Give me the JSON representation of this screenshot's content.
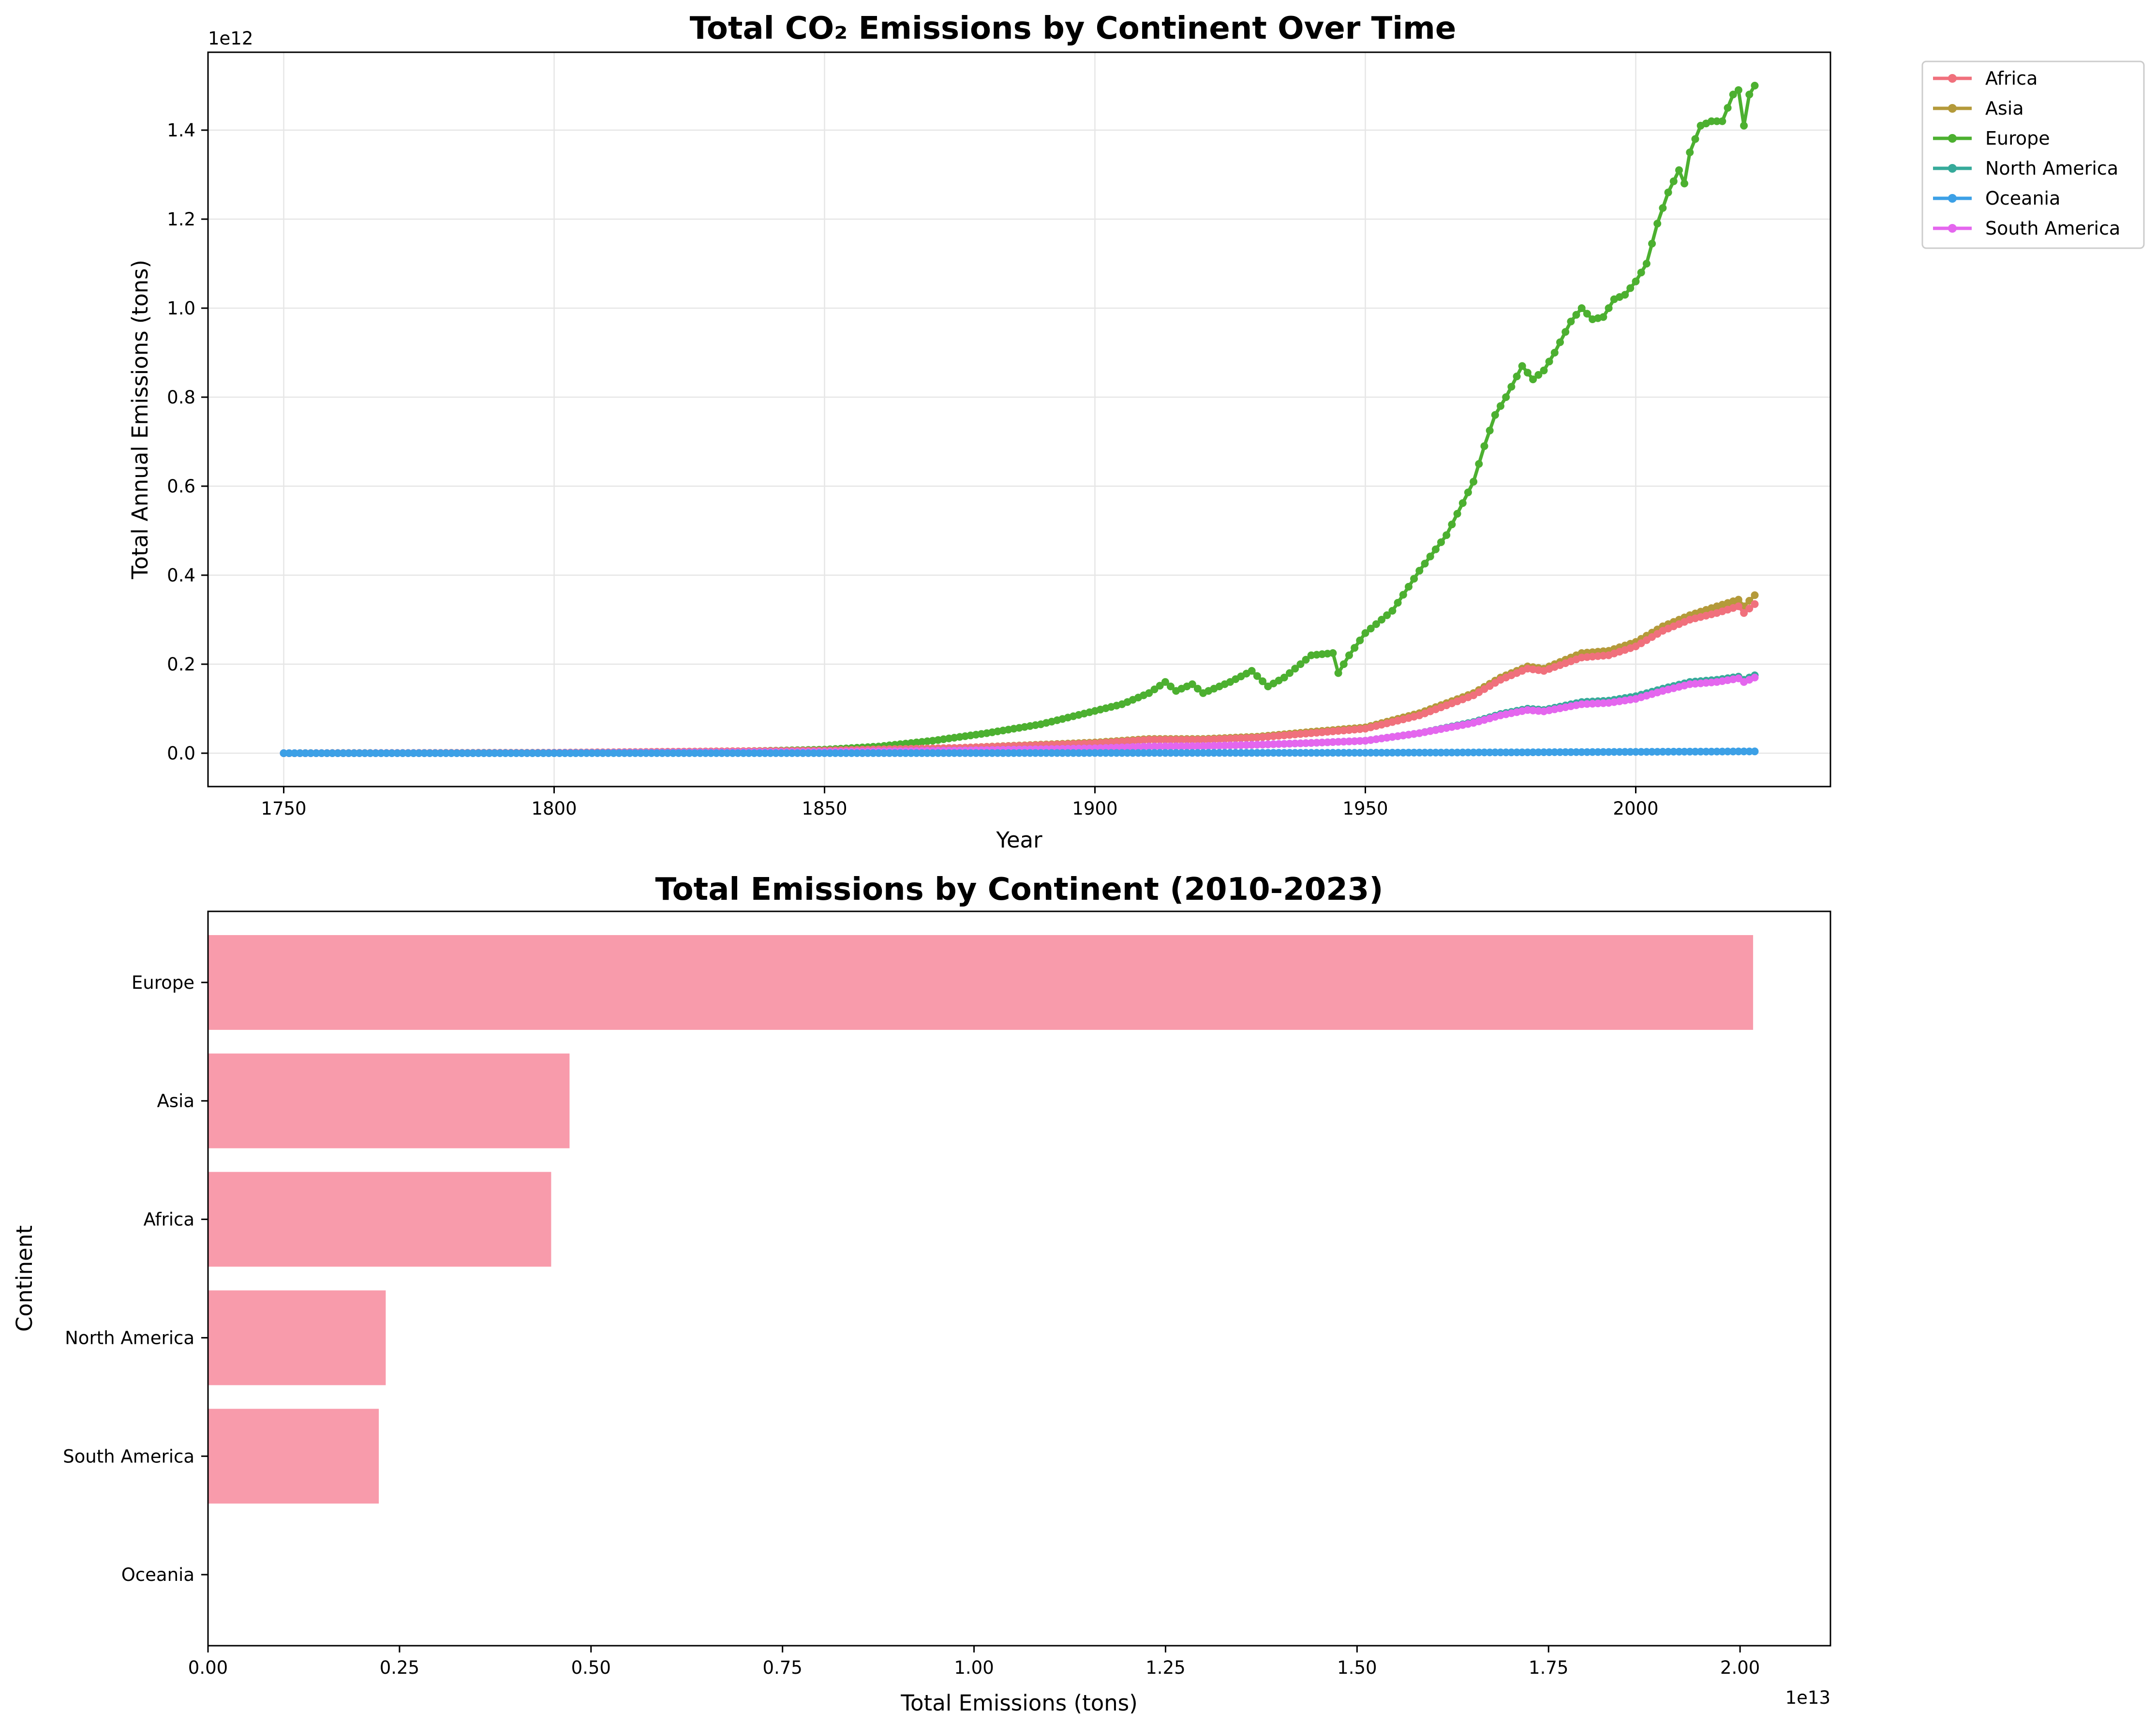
{
  "colors": {
    "Africa": "#f0707c",
    "Asia": "#b49a3a",
    "Europe": "#4cb030",
    "North America": "#36aa9a",
    "Oceania": "#3ca0e6",
    "South America": "#e466ee",
    "bar": "#f89bab",
    "grid": "#e6e6e6"
  },
  "chart_data": [
    {
      "type": "line",
      "title": "Total CO₂ Emissions by Continent Over Time",
      "xlabel": "Year",
      "ylabel": "Total Annual Emissions (tons)",
      "y_offset_label": "1e12",
      "x_ticks": [
        1750,
        1800,
        1850,
        1900,
        1950,
        2000
      ],
      "x_tick_labels": [
        "1750",
        "1800",
        "1850",
        "1900",
        "1950",
        "2000"
      ],
      "y_ticks": [
        0.0,
        0.2,
        0.4,
        0.6,
        0.8,
        1.0,
        1.2,
        1.4
      ],
      "y_tick_labels": [
        "0.0",
        "0.2",
        "0.4",
        "0.6",
        "0.8",
        "1.0",
        "1.2",
        "1.4"
      ],
      "xlim": [
        1736,
        2036
      ],
      "ylim": [
        -0.075,
        1.575
      ],
      "y_unit": "1e12 tons",
      "grid": true,
      "legend": "outside-top-right",
      "legend_entries": [
        "Africa",
        "Asia",
        "Europe",
        "North America",
        "Oceania",
        "South America"
      ],
      "x_range": [
        1750,
        2022
      ],
      "series": [
        {
          "name": "Africa",
          "points": [
            [
              1750,
              0
            ],
            [
              1800,
              0.001
            ],
            [
              1850,
              0.006
            ],
            [
              1875,
              0.012
            ],
            [
              1900,
              0.022
            ],
            [
              1910,
              0.03
            ],
            [
              1920,
              0.03
            ],
            [
              1930,
              0.035
            ],
            [
              1940,
              0.045
            ],
            [
              1950,
              0.055
            ],
            [
              1960,
              0.085
            ],
            [
              1970,
              0.13
            ],
            [
              1975,
              0.165
            ],
            [
              1980,
              0.19
            ],
            [
              1983,
              0.185
            ],
            [
              1990,
              0.215
            ],
            [
              1995,
              0.22
            ],
            [
              2000,
              0.24
            ],
            [
              2005,
              0.275
            ],
            [
              2010,
              0.3
            ],
            [
              2015,
              0.315
            ],
            [
              2019,
              0.33
            ],
            [
              2020,
              0.315
            ],
            [
              2022,
              0.335
            ]
          ]
        },
        {
          "name": "Asia",
          "points": [
            [
              1750,
              0
            ],
            [
              1800,
              0.001
            ],
            [
              1850,
              0.006
            ],
            [
              1875,
              0.012
            ],
            [
              1900,
              0.024
            ],
            [
              1910,
              0.032
            ],
            [
              1920,
              0.032
            ],
            [
              1930,
              0.037
            ],
            [
              1940,
              0.048
            ],
            [
              1950,
              0.058
            ],
            [
              1960,
              0.09
            ],
            [
              1970,
              0.135
            ],
            [
              1975,
              0.17
            ],
            [
              1980,
              0.195
            ],
            [
              1983,
              0.19
            ],
            [
              1990,
              0.225
            ],
            [
              1995,
              0.23
            ],
            [
              2000,
              0.25
            ],
            [
              2005,
              0.285
            ],
            [
              2010,
              0.31
            ],
            [
              2015,
              0.33
            ],
            [
              2019,
              0.345
            ],
            [
              2020,
              0.33
            ],
            [
              2022,
              0.355
            ]
          ]
        },
        {
          "name": "Europe",
          "points": [
            [
              1750,
              0
            ],
            [
              1800,
              0.001
            ],
            [
              1830,
              0.003
            ],
            [
              1850,
              0.008
            ],
            [
              1860,
              0.015
            ],
            [
              1870,
              0.028
            ],
            [
              1880,
              0.045
            ],
            [
              1890,
              0.065
            ],
            [
              1900,
              0.095
            ],
            [
              1905,
              0.11
            ],
            [
              1910,
              0.135
            ],
            [
              1913,
              0.16
            ],
            [
              1915,
              0.14
            ],
            [
              1918,
              0.155
            ],
            [
              1920,
              0.135
            ],
            [
              1925,
              0.16
            ],
            [
              1929,
              0.185
            ],
            [
              1932,
              0.15
            ],
            [
              1935,
              0.17
            ],
            [
              1940,
              0.22
            ],
            [
              1944,
              0.225
            ],
            [
              1945,
              0.18
            ],
            [
              1947,
              0.22
            ],
            [
              1950,
              0.27
            ],
            [
              1955,
              0.32
            ],
            [
              1960,
              0.41
            ],
            [
              1965,
              0.49
            ],
            [
              1970,
              0.61
            ],
            [
              1972,
              0.69
            ],
            [
              1974,
              0.76
            ],
            [
              1976,
              0.8
            ],
            [
              1979,
              0.87
            ],
            [
              1981,
              0.84
            ],
            [
              1983,
              0.86
            ],
            [
              1985,
              0.9
            ],
            [
              1988,
              0.97
            ],
            [
              1990,
              1.0
            ],
            [
              1992,
              0.975
            ],
            [
              1994,
              0.98
            ],
            [
              1996,
              1.02
            ],
            [
              1998,
              1.03
            ],
            [
              2000,
              1.06
            ],
            [
              2002,
              1.1
            ],
            [
              2004,
              1.19
            ],
            [
              2006,
              1.26
            ],
            [
              2008,
              1.31
            ],
            [
              2009,
              1.28
            ],
            [
              2010,
              1.35
            ],
            [
              2012,
              1.41
            ],
            [
              2014,
              1.42
            ],
            [
              2016,
              1.42
            ],
            [
              2018,
              1.48
            ],
            [
              2019,
              1.49
            ],
            [
              2020,
              1.41
            ],
            [
              2021,
              1.48
            ],
            [
              2022,
              1.5
            ]
          ]
        },
        {
          "name": "North America",
          "points": [
            [
              1750,
              0
            ],
            [
              1800,
              0.0005
            ],
            [
              1850,
              0.003
            ],
            [
              1875,
              0.006
            ],
            [
              1900,
              0.011
            ],
            [
              1910,
              0.015
            ],
            [
              1920,
              0.016
            ],
            [
              1930,
              0.019
            ],
            [
              1940,
              0.023
            ],
            [
              1950,
              0.028
            ],
            [
              1960,
              0.045
            ],
            [
              1970,
              0.07
            ],
            [
              1975,
              0.088
            ],
            [
              1980,
              0.1
            ],
            [
              1983,
              0.097
            ],
            [
              1990,
              0.115
            ],
            [
              1995,
              0.118
            ],
            [
              2000,
              0.128
            ],
            [
              2005,
              0.145
            ],
            [
              2010,
              0.16
            ],
            [
              2015,
              0.165
            ],
            [
              2019,
              0.172
            ],
            [
              2020,
              0.165
            ],
            [
              2022,
              0.175
            ]
          ]
        },
        {
          "name": "Oceania",
          "points": [
            [
              1750,
              0
            ],
            [
              1850,
              0.0001
            ],
            [
              1900,
              0.0005
            ],
            [
              1950,
              0.001
            ],
            [
              1980,
              0.002
            ],
            [
              2000,
              0.003
            ],
            [
              2022,
              0.004
            ]
          ]
        },
        {
          "name": "South America",
          "points": [
            [
              1750,
              0
            ],
            [
              1800,
              0.0005
            ],
            [
              1850,
              0.003
            ],
            [
              1875,
              0.006
            ],
            [
              1900,
              0.011
            ],
            [
              1910,
              0.015
            ],
            [
              1920,
              0.016
            ],
            [
              1930,
              0.019
            ],
            [
              1940,
              0.023
            ],
            [
              1950,
              0.028
            ],
            [
              1960,
              0.045
            ],
            [
              1970,
              0.068
            ],
            [
              1975,
              0.085
            ],
            [
              1980,
              0.097
            ],
            [
              1983,
              0.094
            ],
            [
              1990,
              0.11
            ],
            [
              1995,
              0.113
            ],
            [
              2000,
              0.122
            ],
            [
              2005,
              0.14
            ],
            [
              2010,
              0.155
            ],
            [
              2015,
              0.16
            ],
            [
              2019,
              0.168
            ],
            [
              2020,
              0.16
            ],
            [
              2022,
              0.17
            ]
          ]
        }
      ]
    },
    {
      "type": "bar",
      "orientation": "horizontal",
      "title": "Total Emissions by Continent (2010-2023)",
      "xlabel": "Total Emissions (tons)",
      "ylabel": "Continent",
      "x_offset_label": "1e13",
      "categories": [
        "Europe",
        "Asia",
        "Africa",
        "North America",
        "South America",
        "Oceania"
      ],
      "values": [
        2.017,
        0.472,
        0.448,
        0.232,
        0.223,
        0.0006
      ],
      "value_unit": "1e13 tons",
      "x_ticks": [
        0,
        0.25,
        0.5,
        0.75,
        1.0,
        1.25,
        1.5,
        1.75,
        2.0
      ],
      "x_tick_labels": [
        "0.00",
        "0.25",
        "0.50",
        "0.75",
        "1.00",
        "1.25",
        "1.50",
        "1.75",
        "2.00"
      ],
      "xlim": [
        0,
        2.118
      ],
      "grid": false
    }
  ]
}
